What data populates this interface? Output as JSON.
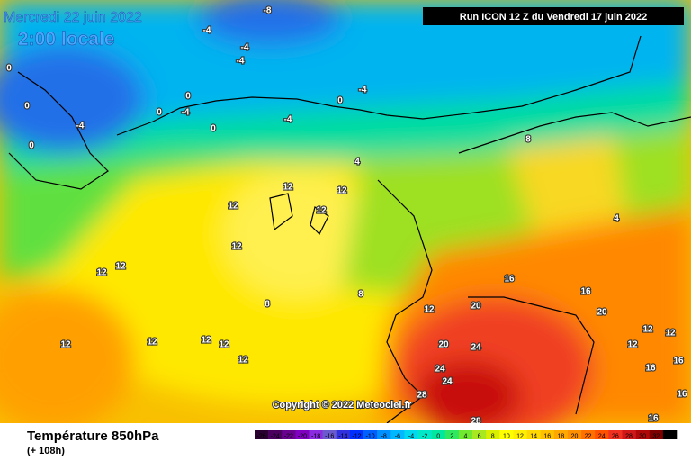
{
  "header": {
    "date": "Mercredi 22 juin 2022",
    "time": "2:00 locale",
    "run": "Run ICON 12 Z du Vendredi 17 juin 2022"
  },
  "copyright": "Copyright © 2022 Meteociel.fr",
  "footer": {
    "title": "Température 850hPa",
    "subtitle": "(+ 108h)"
  },
  "legend": {
    "ticks": [
      -26,
      -24,
      -22,
      -20,
      -18,
      -16,
      -14,
      -12,
      -10,
      -8,
      -6,
      -4,
      -2,
      0,
      2,
      4,
      6,
      8,
      10,
      12,
      14,
      16,
      18,
      20,
      22,
      24,
      26,
      28,
      30,
      32,
      34
    ],
    "colors": [
      "#2a0030",
      "#4b0060",
      "#6a0090",
      "#7f00c0",
      "#8a2be2",
      "#6a5acd",
      "#3030e0",
      "#0030ff",
      "#0060ff",
      "#0090ff",
      "#00b8ff",
      "#00d8f0",
      "#00e8c8",
      "#00e8a0",
      "#30e860",
      "#70e830",
      "#a8e820",
      "#d8f000",
      "#ffff00",
      "#ffee00",
      "#ffd800",
      "#ffc000",
      "#ffa800",
      "#ff9000",
      "#ff7000",
      "#ff5000",
      "#f03020",
      "#d01818",
      "#b00808",
      "#800000",
      "#000000"
    ]
  },
  "contour_labels": [
    -8,
    -4,
    -4,
    -4,
    0,
    0,
    -4,
    0,
    0,
    -4,
    0,
    -4,
    0,
    0,
    -4,
    4,
    8,
    12,
    12,
    12,
    12,
    12,
    12,
    12,
    4,
    16,
    16,
    20,
    20,
    20,
    24,
    24,
    24,
    28,
    28,
    8,
    12,
    12,
    12,
    12,
    12,
    12,
    12,
    12,
    16,
    16,
    16,
    16,
    8,
    12
  ]
}
